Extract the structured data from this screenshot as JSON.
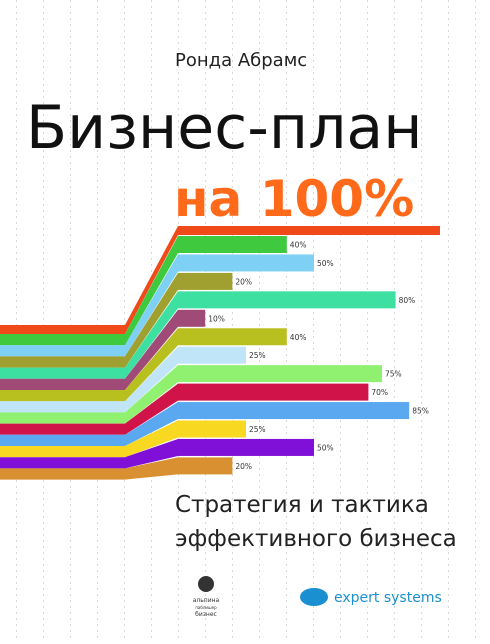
{
  "author": "Ронда Абрамс",
  "title": "Бизнес-план",
  "title_accent": "на 100%",
  "subtitle": [
    "Стратегия и тактика",
    "эффективного бизнеса"
  ],
  "publisher": [
    "альпина",
    "паблишер",
    "бизнес"
  ],
  "partner": "expert systems",
  "chart_data": {
    "type": "bar",
    "orientation": "horizontal",
    "values": [
      40,
      50,
      20,
      80,
      10,
      40,
      25,
      75,
      70,
      85,
      25,
      50,
      20
    ],
    "value_labels": [
      "40%",
      "50%",
      "20%",
      "80%",
      "10%",
      "40%",
      "25%",
      "75%",
      "70%",
      "85%",
      "25%",
      "50%",
      "20%"
    ],
    "colors": [
      "#3ec93e",
      "#7fd0f5",
      "#a0a030",
      "#3de0a0",
      "#a04a78",
      "#b8c020",
      "#c0e4f8",
      "#90f070",
      "#d0144a",
      "#5aa8f0",
      "#f8d820",
      "#8010d8",
      "#d89030"
    ],
    "xlim": [
      0,
      100
    ]
  }
}
